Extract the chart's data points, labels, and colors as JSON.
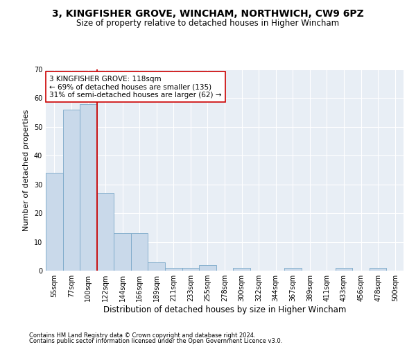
{
  "title1": "3, KINGFISHER GROVE, WINCHAM, NORTHWICH, CW9 6PZ",
  "title2": "Size of property relative to detached houses in Higher Wincham",
  "xlabel": "Distribution of detached houses by size in Higher Wincham",
  "ylabel": "Number of detached properties",
  "categories": [
    "55sqm",
    "77sqm",
    "100sqm",
    "122sqm",
    "144sqm",
    "166sqm",
    "189sqm",
    "211sqm",
    "233sqm",
    "255sqm",
    "278sqm",
    "300sqm",
    "322sqm",
    "344sqm",
    "367sqm",
    "389sqm",
    "411sqm",
    "433sqm",
    "456sqm",
    "478sqm",
    "500sqm"
  ],
  "values": [
    34,
    56,
    58,
    27,
    13,
    13,
    3,
    1,
    1,
    2,
    0,
    1,
    0,
    0,
    1,
    0,
    0,
    1,
    0,
    1,
    0
  ],
  "bar_color": "#c9d9ea",
  "bar_edge_color": "#7aa8c8",
  "vline_color": "#cc0000",
  "annotation_text": "3 KINGFISHER GROVE: 118sqm\n← 69% of detached houses are smaller (135)\n31% of semi-detached houses are larger (62) →",
  "annotation_box_color": "#ffffff",
  "annotation_box_edge": "#cc0000",
  "ylim": [
    0,
    70
  ],
  "yticks": [
    0,
    10,
    20,
    30,
    40,
    50,
    60,
    70
  ],
  "footer1": "Contains HM Land Registry data © Crown copyright and database right 2024.",
  "footer2": "Contains public sector information licensed under the Open Government Licence v3.0.",
  "bg_color": "#ffffff",
  "plot_bg_color": "#e8eef5",
  "grid_color": "#ffffff",
  "title1_fontsize": 10,
  "title2_fontsize": 8.5,
  "tick_fontsize": 7,
  "ylabel_fontsize": 8,
  "xlabel_fontsize": 8.5,
  "annotation_fontsize": 7.5,
  "footer_fontsize": 6
}
